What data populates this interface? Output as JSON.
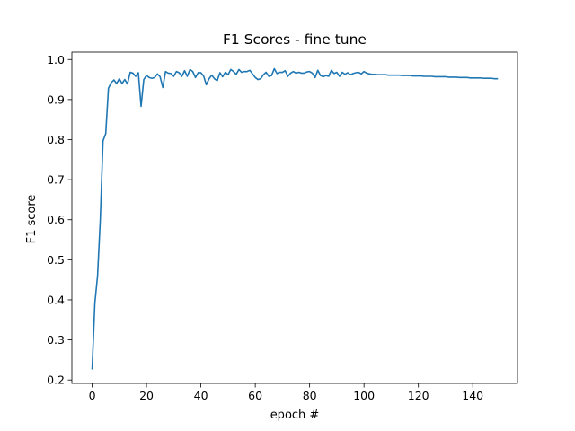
{
  "chart_data": {
    "type": "line",
    "title": "F1 Scores - fine tune",
    "xlabel": "epoch #",
    "ylabel": "F1 score",
    "xlim": [
      -7.45,
      156.45
    ],
    "ylim": [
      0.1915,
      1.0185
    ],
    "xticks": [
      0,
      20,
      40,
      60,
      80,
      100,
      120,
      140
    ],
    "yticks": [
      0.2,
      0.3,
      0.4,
      0.5,
      0.6,
      0.7,
      0.8,
      0.9,
      1.0
    ],
    "ytick_labels": [
      "0.2",
      "0.3",
      "0.4",
      "0.5",
      "0.6",
      "0.7",
      "0.8",
      "0.9",
      "1.0"
    ],
    "grid": false,
    "series": [
      {
        "color": "#1f77b4",
        "y": [
          0.228,
          0.392,
          0.46,
          0.6,
          0.797,
          0.815,
          0.928,
          0.942,
          0.949,
          0.94,
          0.952,
          0.94,
          0.95,
          0.939,
          0.968,
          0.966,
          0.958,
          0.967,
          0.883,
          0.95,
          0.96,
          0.955,
          0.953,
          0.955,
          0.964,
          0.957,
          0.93,
          0.97,
          0.966,
          0.965,
          0.958,
          0.97,
          0.967,
          0.958,
          0.972,
          0.958,
          0.975,
          0.97,
          0.955,
          0.967,
          0.967,
          0.959,
          0.937,
          0.952,
          0.961,
          0.952,
          0.947,
          0.967,
          0.957,
          0.968,
          0.962,
          0.975,
          0.97,
          0.963,
          0.975,
          0.968,
          0.97,
          0.97,
          0.973,
          0.964,
          0.955,
          0.95,
          0.952,
          0.962,
          0.968,
          0.958,
          0.96,
          0.977,
          0.965,
          0.968,
          0.968,
          0.972,
          0.958,
          0.966,
          0.97,
          0.966,
          0.968,
          0.966,
          0.966,
          0.969,
          0.97,
          0.966,
          0.955,
          0.973,
          0.96,
          0.957,
          0.96,
          0.958,
          0.973,
          0.965,
          0.968,
          0.958,
          0.968,
          0.963,
          0.967,
          0.962,
          0.965,
          0.967,
          0.968,
          0.964,
          0.97,
          0.966,
          0.964,
          0.963,
          0.963,
          0.962,
          0.962,
          0.962,
          0.962,
          0.961,
          0.961,
          0.961,
          0.961,
          0.961,
          0.96,
          0.96,
          0.96,
          0.96,
          0.959,
          0.959,
          0.959,
          0.959,
          0.958,
          0.958,
          0.958,
          0.958,
          0.957,
          0.957,
          0.957,
          0.957,
          0.957,
          0.956,
          0.956,
          0.956,
          0.956,
          0.955,
          0.955,
          0.955,
          0.955,
          0.954,
          0.954,
          0.954,
          0.954,
          0.954,
          0.953,
          0.953,
          0.953,
          0.953,
          0.952,
          0.952
        ]
      }
    ]
  }
}
